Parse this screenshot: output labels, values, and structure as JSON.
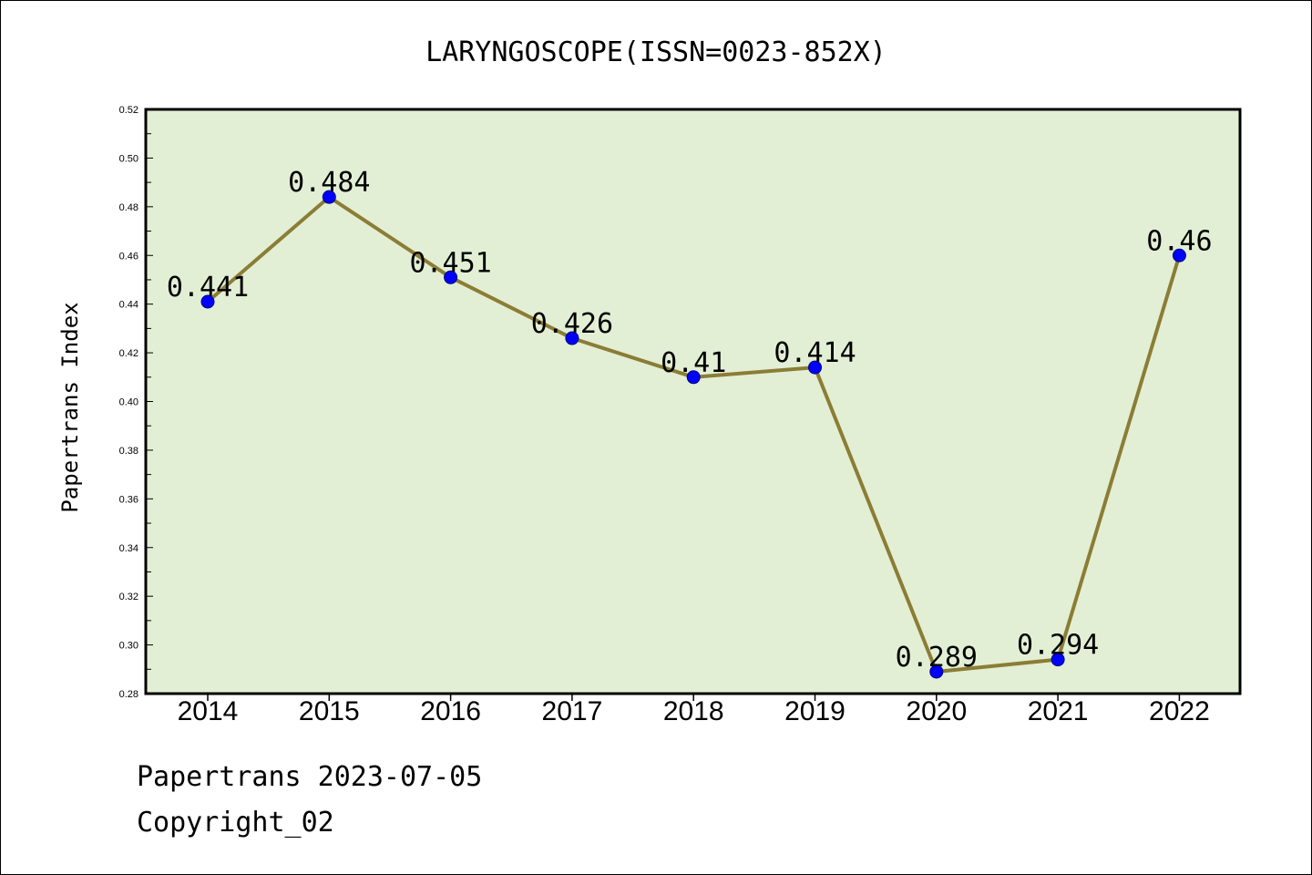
{
  "chart_data": {
    "type": "line",
    "title": "LARYNGOSCOPE(ISSN=0023-852X)",
    "ylabel": "Papertrans Index",
    "xlabel": "",
    "categories": [
      "2014",
      "2015",
      "2016",
      "2017",
      "2018",
      "2019",
      "2020",
      "2021",
      "2022"
    ],
    "values": [
      0.441,
      0.484,
      0.451,
      0.426,
      0.41,
      0.414,
      0.289,
      0.294,
      0.46
    ],
    "data_labels": [
      "0.441",
      "0.484",
      "0.451",
      "0.426",
      "0.41",
      "0.414",
      "0.289",
      "0.294",
      "0.46"
    ],
    "ylim": [
      0.28,
      0.52
    ],
    "yticks": [
      "0.28",
      "0.30",
      "0.32",
      "0.34",
      "0.36",
      "0.38",
      "0.40",
      "0.42",
      "0.44",
      "0.46",
      "0.48",
      "0.50",
      "0.52"
    ],
    "grid": false,
    "legend": "none",
    "colors": {
      "plot_background": "#e2efd5",
      "line": "#8b7d35",
      "marker_fill": "#0000ff",
      "marker_edge": "#00007a"
    }
  },
  "footer": {
    "line1": "Papertrans 2023-07-05",
    "line2": "Copyright_02"
  }
}
